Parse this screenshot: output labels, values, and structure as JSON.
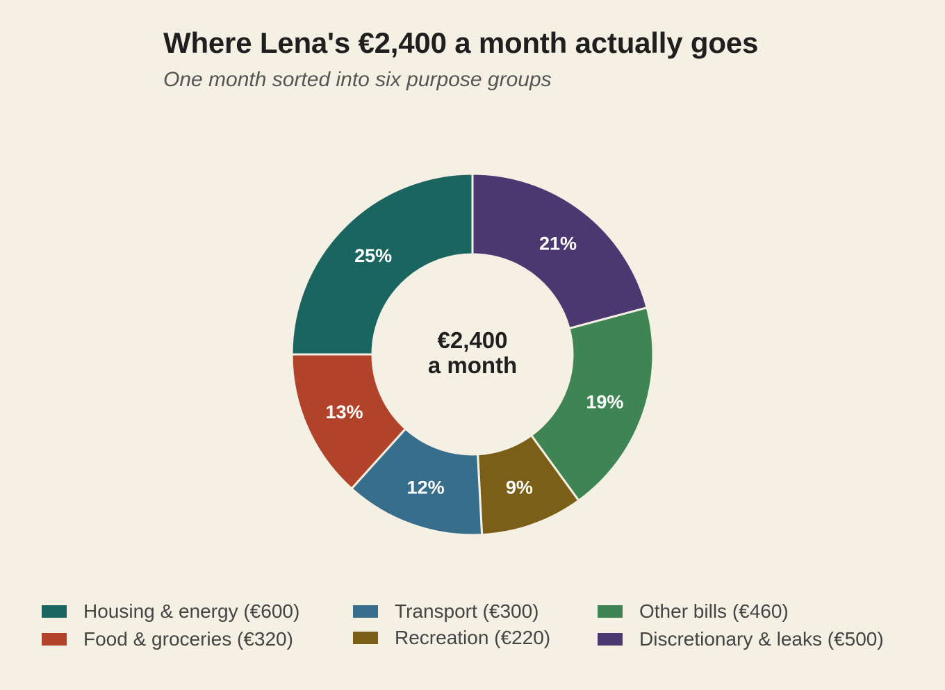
{
  "chart_data": {
    "type": "pie",
    "donut": true,
    "title": "Where Lena's €2,400 a month actually goes",
    "subtitle": "One month sorted into six purpose groups",
    "center_label": [
      "€2,400",
      "a month"
    ],
    "total": 2400,
    "currency": "€",
    "slices": [
      {
        "category": "Discretionary & leaks",
        "value": 500,
        "percent_label": "21%",
        "color": "#4b3870",
        "legend": "Discretionary & leaks (€500)"
      },
      {
        "category": "Other bills",
        "value": 460,
        "percent_label": "19%",
        "color": "#3f8553",
        "legend": "Other bills (€460)"
      },
      {
        "category": "Recreation",
        "value": 220,
        "percent_label": "9%",
        "color": "#7b5e18",
        "legend": "Recreation (€220)"
      },
      {
        "category": "Transport",
        "value": 300,
        "percent_label": "12%",
        "color": "#376e8c",
        "legend": "Transport (€300)"
      },
      {
        "category": "Food & groceries",
        "value": 320,
        "percent_label": "13%",
        "color": "#b2432b",
        "legend": "Food & groceries (€320)"
      },
      {
        "category": "Housing & energy",
        "value": 600,
        "percent_label": "25%",
        "color": "#1b6560",
        "legend": "Housing & energy (€600)"
      }
    ],
    "legend_order": [
      "Housing & energy",
      "Food & groceries",
      "Transport",
      "Recreation",
      "Other bills",
      "Discretionary & leaks"
    ],
    "legend_position": "bottom"
  },
  "colors": {
    "background": "#f5f0e4",
    "slice_border": "#f5f0e4",
    "text_dark": "#1f1f1f",
    "text_muted": "#555555"
  }
}
